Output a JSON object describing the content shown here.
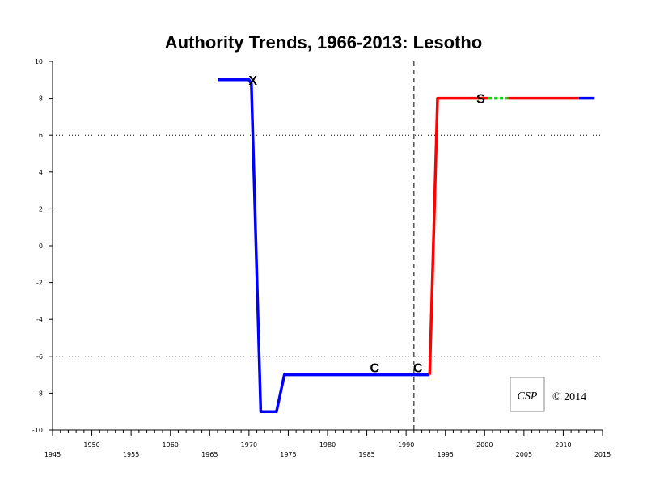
{
  "chart_data": {
    "type": "line",
    "title": "Authority Trends, 1966-2013: Lesotho",
    "xlim": [
      1945,
      2015
    ],
    "ylim": [
      -10,
      10
    ],
    "x_ticks_major": [
      1945,
      1955,
      1965,
      1975,
      1985,
      1995,
      2005,
      2015
    ],
    "x_ticks_minor_labeled": [
      1950,
      1960,
      1970,
      1980,
      1990,
      2000,
      2010
    ],
    "x_tick_labels": [
      "1945",
      "1950",
      "1955",
      "1960",
      "1965",
      "1970",
      "1975",
      "1980",
      "1985",
      "1990",
      "1995",
      "2000",
      "2005",
      "2010",
      "2015"
    ],
    "y_ticks": [
      -10,
      -8,
      -6,
      -4,
      -2,
      0,
      2,
      4,
      6,
      8,
      10
    ],
    "y_tick_labels": [
      "-10",
      "-8",
      "-6",
      "-4",
      "-2",
      "0",
      "2",
      "4",
      "6",
      "8",
      "10"
    ],
    "reference_lines_y": [
      -6,
      6
    ],
    "reference_line_x": 1991,
    "series": [
      {
        "color": "#0000ff",
        "style": "solid",
        "points": [
          [
            1966,
            9
          ],
          [
            1970,
            9
          ],
          [
            1970.3,
            8.8
          ],
          [
            1971.5,
            -9
          ],
          [
            1973.5,
            -9
          ],
          [
            1974.5,
            -7
          ],
          [
            1993,
            -7
          ]
        ]
      },
      {
        "color": "#ff0000",
        "style": "solid",
        "points": [
          [
            1993,
            -7
          ],
          [
            1994,
            8
          ],
          [
            2000.5,
            8
          ]
        ]
      },
      {
        "color": "#00e000",
        "style": "dotted",
        "points": [
          [
            2000.5,
            8
          ],
          [
            2003,
            8
          ]
        ]
      },
      {
        "color": "#ff0000",
        "style": "solid",
        "points": [
          [
            2003,
            8
          ],
          [
            2012,
            8
          ]
        ]
      },
      {
        "color": "#0000ff",
        "style": "solid",
        "points": [
          [
            2012,
            8
          ],
          [
            2014,
            8
          ]
        ]
      }
    ],
    "annotations": [
      {
        "text": "X",
        "x": 1970.5,
        "y": 9
      },
      {
        "text": "S",
        "x": 1999.5,
        "y": 8
      },
      {
        "text": "C",
        "x": 1986,
        "y": -6.6
      },
      {
        "text": "C",
        "x": 1991.5,
        "y": -6.6
      }
    ],
    "logo_text": "CSP",
    "copyright": "© 2014"
  }
}
